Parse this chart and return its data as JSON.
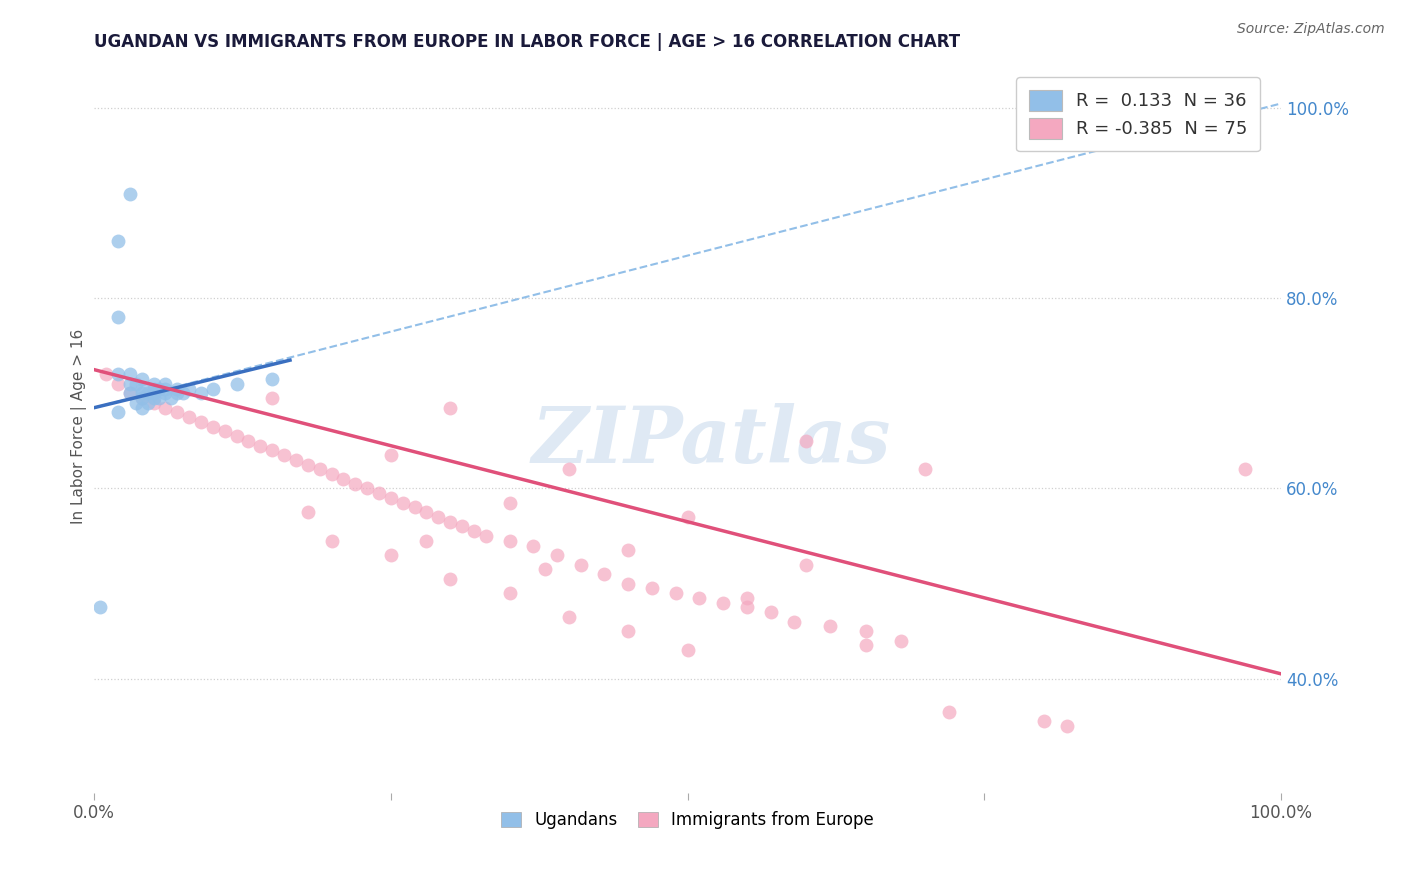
{
  "title": "UGANDAN VS IMMIGRANTS FROM EUROPE IN LABOR FORCE | AGE > 16 CORRELATION CHART",
  "source_text": "Source: ZipAtlas.com",
  "ylabel": "In Labor Force | Age > 16",
  "xmin": 0.0,
  "xmax": 1.0,
  "ymin": 0.28,
  "ymax": 1.05,
  "y_tick_positions_right": [
    0.4,
    0.6,
    0.8,
    1.0
  ],
  "grid_color": "#d0d0d0",
  "background_color": "#ffffff",
  "blue_color": "#92bfe8",
  "pink_color": "#f4a8c0",
  "blue_line_color": "#3a6fc0",
  "pink_line_color": "#e0507a",
  "dashed_line_color": "#92bfe8",
  "legend_R_blue": "0.133",
  "legend_N_blue": "36",
  "legend_R_pink": "-0.385",
  "legend_N_pink": "75",
  "watermark": "ZIPatlas",
  "ugandan_x": [
    0.005,
    0.02,
    0.02,
    0.02,
    0.03,
    0.03,
    0.03,
    0.035,
    0.035,
    0.04,
    0.04,
    0.04,
    0.04,
    0.04,
    0.045,
    0.045,
    0.05,
    0.05,
    0.05,
    0.05,
    0.055,
    0.055,
    0.06,
    0.06,
    0.06,
    0.065,
    0.07,
    0.07,
    0.075,
    0.08,
    0.09,
    0.1,
    0.12,
    0.15,
    0.02,
    0.03
  ],
  "ugandan_y": [
    0.475,
    0.68,
    0.72,
    0.78,
    0.7,
    0.71,
    0.72,
    0.69,
    0.71,
    0.685,
    0.695,
    0.7,
    0.705,
    0.715,
    0.69,
    0.7,
    0.695,
    0.7,
    0.705,
    0.71,
    0.695,
    0.705,
    0.7,
    0.705,
    0.71,
    0.695,
    0.7,
    0.705,
    0.7,
    0.705,
    0.7,
    0.705,
    0.71,
    0.715,
    0.86,
    0.91
  ],
  "europe_x": [
    0.01,
    0.02,
    0.03,
    0.04,
    0.05,
    0.06,
    0.07,
    0.08,
    0.09,
    0.1,
    0.11,
    0.12,
    0.13,
    0.14,
    0.15,
    0.16,
    0.17,
    0.18,
    0.19,
    0.2,
    0.21,
    0.22,
    0.23,
    0.24,
    0.25,
    0.26,
    0.27,
    0.28,
    0.29,
    0.3,
    0.31,
    0.32,
    0.33,
    0.35,
    0.37,
    0.39,
    0.41,
    0.43,
    0.45,
    0.47,
    0.49,
    0.51,
    0.53,
    0.55,
    0.57,
    0.59,
    0.62,
    0.65,
    0.68,
    0.3,
    0.4,
    0.5,
    0.6,
    0.15,
    0.25,
    0.35,
    0.45,
    0.55,
    0.65,
    0.2,
    0.3,
    0.4,
    0.5,
    0.25,
    0.35,
    0.45,
    0.18,
    0.28,
    0.38,
    0.6,
    0.7,
    0.8,
    0.97,
    0.72,
    0.82
  ],
  "europe_y": [
    0.72,
    0.71,
    0.7,
    0.695,
    0.69,
    0.685,
    0.68,
    0.675,
    0.67,
    0.665,
    0.66,
    0.655,
    0.65,
    0.645,
    0.64,
    0.635,
    0.63,
    0.625,
    0.62,
    0.615,
    0.61,
    0.605,
    0.6,
    0.595,
    0.59,
    0.585,
    0.58,
    0.575,
    0.57,
    0.565,
    0.56,
    0.555,
    0.55,
    0.545,
    0.54,
    0.53,
    0.52,
    0.51,
    0.5,
    0.495,
    0.49,
    0.485,
    0.48,
    0.475,
    0.47,
    0.46,
    0.455,
    0.45,
    0.44,
    0.685,
    0.62,
    0.57,
    0.52,
    0.695,
    0.635,
    0.585,
    0.535,
    0.485,
    0.435,
    0.545,
    0.505,
    0.465,
    0.43,
    0.53,
    0.49,
    0.45,
    0.575,
    0.545,
    0.515,
    0.65,
    0.62,
    0.355,
    0.62,
    0.365,
    0.35
  ],
  "blue_line_x0": 0.0,
  "blue_line_x1": 0.165,
  "blue_line_y0": 0.685,
  "blue_line_y1": 0.735,
  "dash_line_x0": 0.0,
  "dash_line_x1": 1.0,
  "dash_line_y0": 0.685,
  "dash_line_y1": 1.005,
  "pink_line_x0": 0.0,
  "pink_line_x1": 1.0,
  "pink_line_y0": 0.725,
  "pink_line_y1": 0.405
}
